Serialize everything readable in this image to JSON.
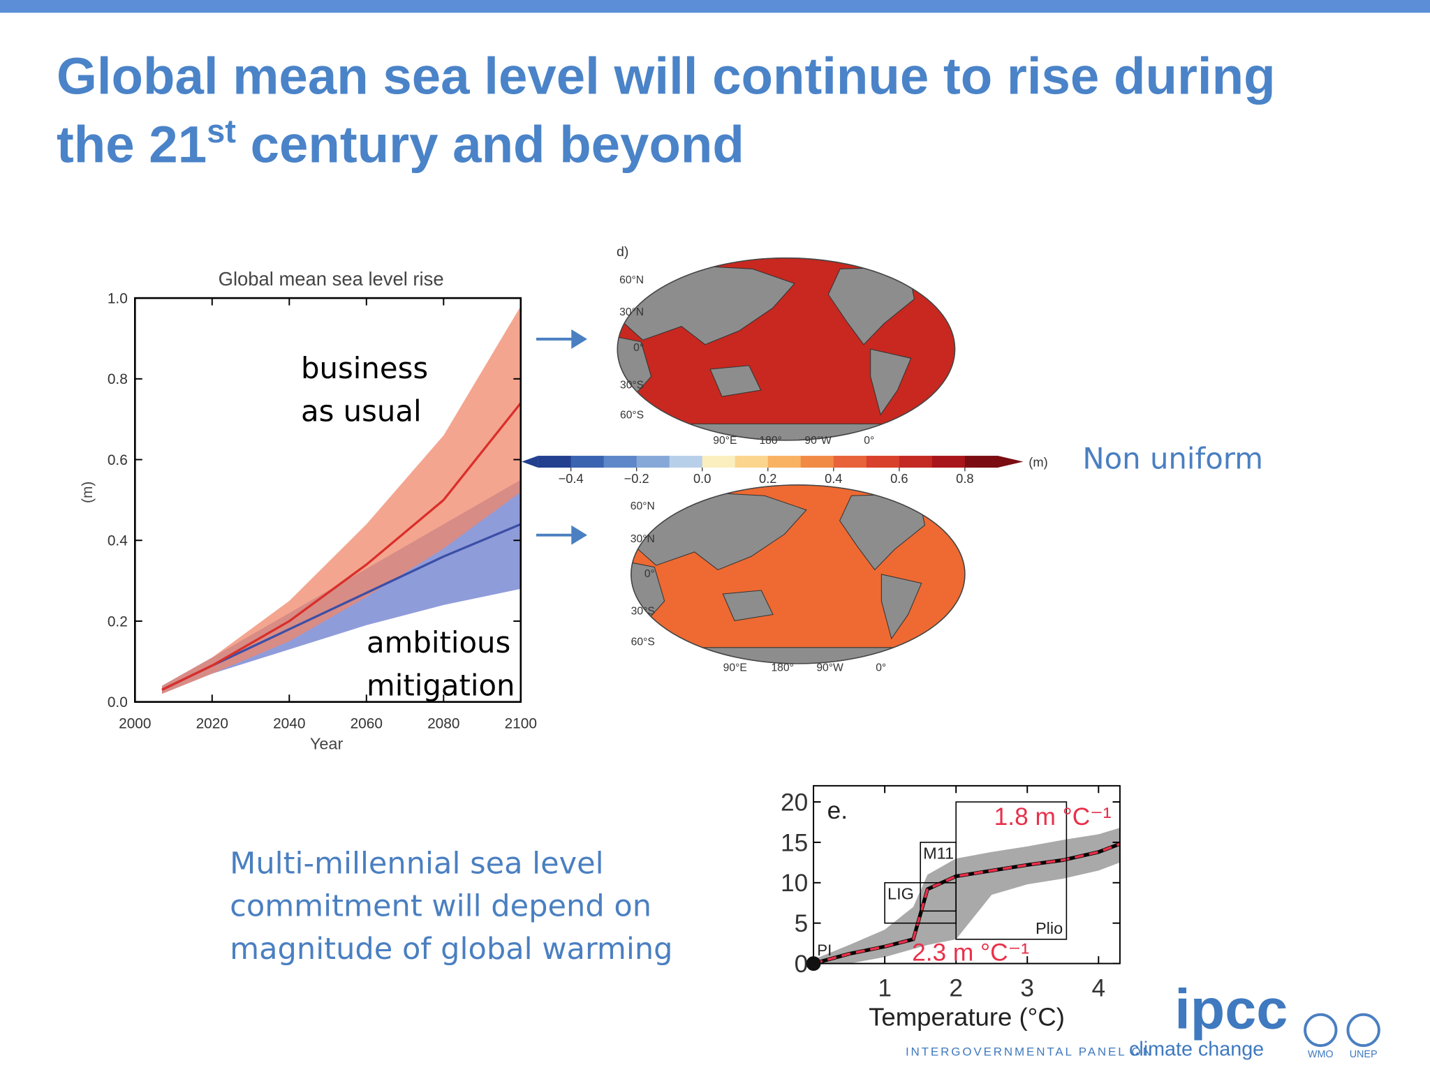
{
  "title": {
    "line1": "Global mean sea level will continue to rise during",
    "line2_before": "the 21",
    "line2_sup": "st",
    "line2_after": " century and beyond"
  },
  "side_note": "Non uniform",
  "bottom_note": [
    "Multi-millennial sea level",
    "commitment will depend on",
    "magnitude of global warming"
  ],
  "logo": {
    "mark": "ipcc",
    "line_prefix": "INTERGOVERNMENTAL PANEL ON",
    "line_suffix": "climate change",
    "partners": [
      "WMO",
      "UNEP"
    ]
  },
  "chart_data": [
    {
      "type": "line",
      "title": "Global mean sea level rise",
      "x_label": "Year",
      "y_label": "(m)",
      "x": [
        2007,
        2020,
        2040,
        2060,
        2080,
        2100
      ],
      "series": [
        {
          "color": "#3c4fa6",
          "band_color": "#8391d6",
          "values": [
            0.03,
            0.09,
            0.18,
            0.27,
            0.36,
            0.44
          ],
          "lower": [
            0.02,
            0.07,
            0.13,
            0.19,
            0.24,
            0.28
          ],
          "upper": [
            0.04,
            0.11,
            0.22,
            0.33,
            0.44,
            0.55
          ]
        },
        {
          "color": "#d92f2a",
          "band_color": "#f0876a",
          "values": [
            0.03,
            0.09,
            0.2,
            0.34,
            0.5,
            0.74
          ],
          "lower": [
            0.02,
            0.07,
            0.15,
            0.26,
            0.38,
            0.52
          ],
          "upper": [
            0.04,
            0.11,
            0.25,
            0.44,
            0.66,
            0.98
          ]
        }
      ],
      "annotations": [
        [
          "business",
          "as usual"
        ],
        [
          "ambitious",
          "mitigation"
        ]
      ],
      "xlim": [
        2000,
        2100
      ],
      "xticks": [
        2000,
        2020,
        2040,
        2060,
        2080,
        2100
      ],
      "ylim": [
        0,
        1
      ],
      "yticks": [
        {
          "value": 0,
          "label": "0.0"
        },
        {
          "value": 0.2,
          "label": "0.2"
        },
        {
          "value": 0.4,
          "label": "0.4"
        },
        {
          "value": 0.6,
          "label": "0.6"
        },
        {
          "value": 0.8,
          "label": "0.8"
        },
        {
          "value": 1,
          "label": "1.0"
        }
      ]
    },
    {
      "type": "map",
      "panel_label": "d)",
      "unit": "(m)",
      "clim": [
        -0.5,
        0.9
      ],
      "colors": [
        "#23408f",
        "#3a63b0",
        "#5d87c9",
        "#86a8d8",
        "#b8cfe9",
        "#fbefc0",
        "#fbd58d",
        "#f8b262",
        "#f18a45",
        "#e8623a",
        "#d8412c",
        "#c42a22",
        "#a8151a",
        "#7a0c12"
      ],
      "ticks": [
        {
          "value": -0.4,
          "label": "−0.4"
        },
        {
          "value": -0.2,
          "label": "−0.2"
        },
        {
          "value": 0,
          "label": "0.0"
        },
        0.2,
        0.4,
        0.6,
        0.8
      ],
      "panels": [
        {
          "ocean_color": "#c8281f",
          "lat_labels": [
            "60°N",
            "30°N",
            "0°",
            "30°S",
            "60°S"
          ],
          "lon_labels": [
            "90°E",
            "180°",
            "90°W",
            "0°"
          ]
        },
        {
          "ocean_color": "#ee6a32",
          "lat_labels": [
            "60°N",
            "30°N",
            "0°",
            "30°S",
            "60°S"
          ],
          "lon_labels": [
            "90°E",
            "180°",
            "90°W",
            "0°"
          ]
        }
      ]
    },
    {
      "type": "line",
      "panel_label": "e.",
      "x_label": "Temperature (°C)",
      "x": [
        0,
        0.5,
        1,
        1.4,
        1.6,
        2,
        2.5,
        3,
        3.5,
        4,
        4.3
      ],
      "series": [
        {
          "color": "#000000",
          "dash_color": "#e8304a",
          "band_color": "#a9a9a9",
          "values": [
            0,
            1.2,
            2.1,
            3,
            9.2,
            10.8,
            11.5,
            12.2,
            12.8,
            13.8,
            14.8
          ],
          "lower": [
            0,
            0,
            0.8,
            1.8,
            2.3,
            3,
            8.5,
            9.8,
            10.5,
            11.5,
            12.5
          ],
          "upper": [
            0.5,
            2.3,
            4.2,
            7,
            11,
            13,
            13.8,
            14.5,
            15.3,
            16,
            16.8
          ]
        }
      ],
      "boxes": [
        {
          "label": "LIG",
          "xlim": [
            1,
            2
          ],
          "ylim": [
            5,
            10
          ]
        },
        {
          "label": "M11",
          "xlim": [
            1.5,
            2
          ],
          "ylim": [
            6.5,
            15
          ]
        },
        {
          "label": "Plio",
          "xlim": [
            2,
            3.55
          ],
          "ylim": [
            3,
            20
          ]
        }
      ],
      "point_label": "PI",
      "rates": [
        "1.8 m °C⁻¹",
        "2.3 m °C⁻¹"
      ],
      "rate_color": "#e8304a",
      "xlim": [
        0,
        4.3
      ],
      "xticks": [
        1,
        2,
        3,
        4
      ],
      "ylim": [
        0,
        22
      ],
      "yticks": [
        0,
        5,
        10,
        15,
        20
      ]
    }
  ]
}
